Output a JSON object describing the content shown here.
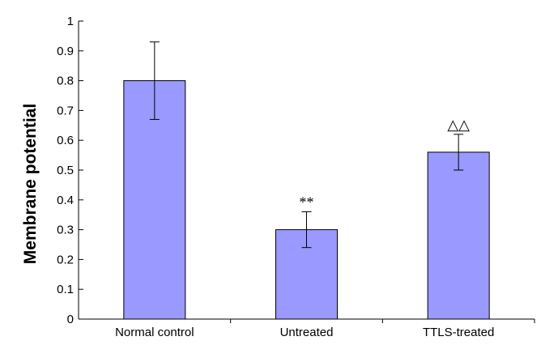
{
  "chart_data": {
    "type": "bar",
    "categories": [
      "Normal control",
      "Untreated",
      "TTLS-treated"
    ],
    "values": [
      0.8,
      0.3,
      0.56
    ],
    "errors": [
      0.13,
      0.06,
      0.06
    ],
    "annotations": [
      "",
      "**",
      "△△"
    ],
    "ylabel": "Membrane potential",
    "xlabel": "",
    "ylim": [
      0,
      1
    ],
    "yticks": [
      "0",
      "0.1",
      "0.2",
      "0.3",
      "0.4",
      "0.5",
      "0.6",
      "0.7",
      "0.8",
      "0.9",
      "1"
    ],
    "grid": false,
    "bar_color": "#9999ff"
  }
}
